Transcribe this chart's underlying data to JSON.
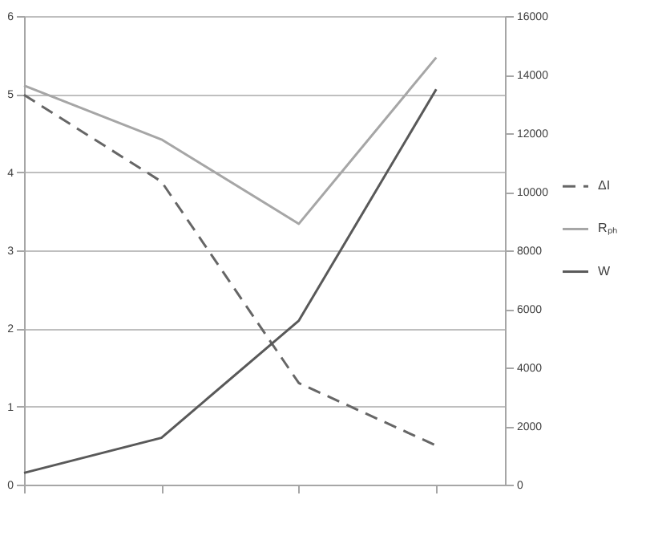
{
  "chart_data": {
    "type": "line",
    "categories": [
      null,
      null,
      null,
      null
    ],
    "series": [
      {
        "name": "ΔI",
        "color": "#666666",
        "line_style": "dashed",
        "values": [
          4.99,
          3.88,
          1.3,
          0.5
        ]
      },
      {
        "name": "Rₚₕ",
        "color": "#a6a6a6",
        "line_style": "solid",
        "values": [
          5.11,
          4.42,
          3.34,
          5.47
        ]
      },
      {
        "name": "W",
        "color": "#595959",
        "line_style": "solid",
        "axis": "y2",
        "values": [
          400,
          1600,
          5600,
          13500
        ]
      }
    ],
    "ylim": [
      0,
      6
    ],
    "yticks": [
      0,
      1,
      2,
      3,
      4,
      5,
      6
    ],
    "y2lim": [
      0,
      16000
    ],
    "y2ticks": [
      0,
      2000,
      4000,
      6000,
      8000,
      10000,
      12000,
      14000,
      16000
    ],
    "grid": "y",
    "legend": "right",
    "marker": "none"
  }
}
